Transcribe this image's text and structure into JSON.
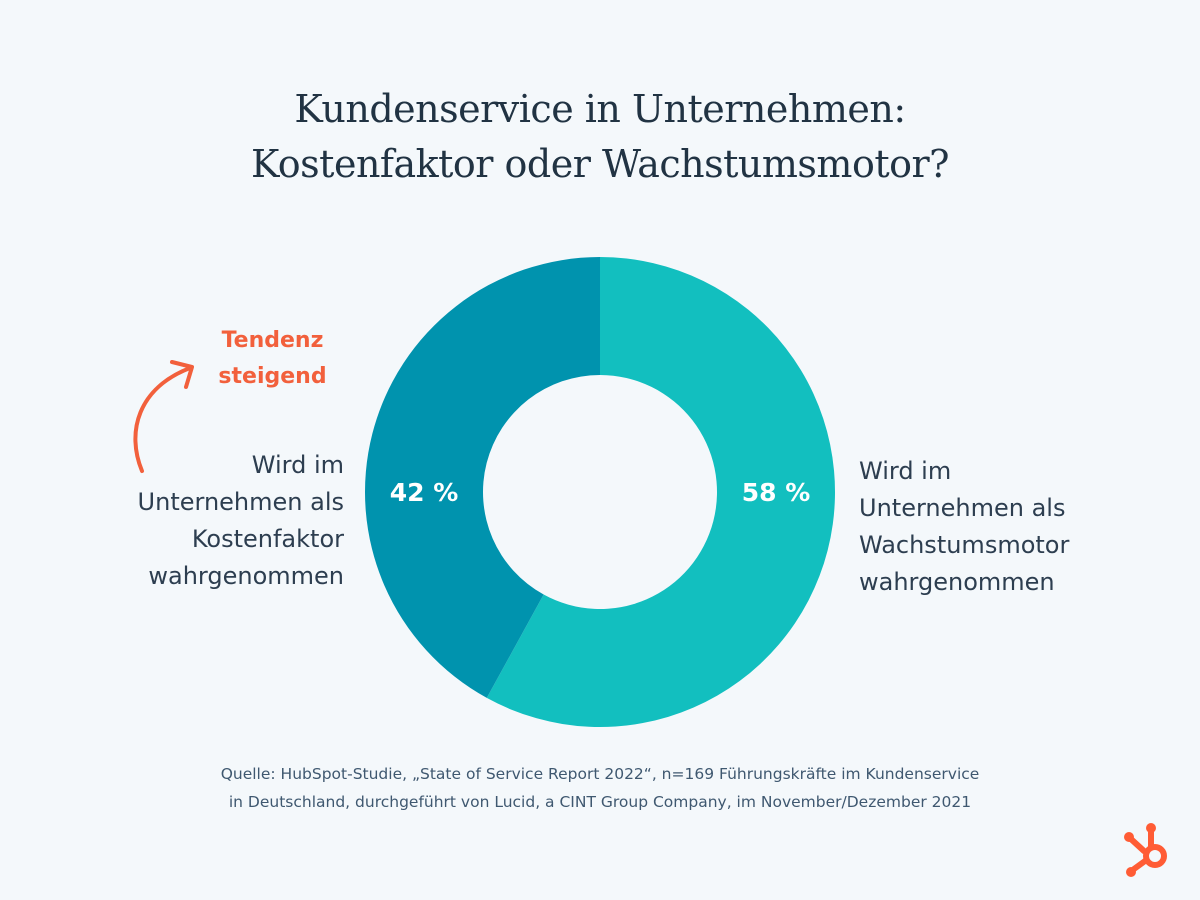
{
  "title": {
    "line1": "Kundenservice in Unternehmen:",
    "line2": "Kostenfaktor oder Wachstumsmotor?"
  },
  "chart_data": {
    "type": "pie",
    "variant": "donut",
    "slices": [
      {
        "value": 58,
        "display": "58 %",
        "color": "#12bfbf",
        "label_lines": [
          "Wird im",
          "Unternehmen als",
          "Wachstumsmotor",
          "wahrgenommen"
        ]
      },
      {
        "value": 42,
        "display": "42 %",
        "color": "#0093ae",
        "label_lines": [
          "Wird im",
          "Unternehmen als",
          "Kostenfaktor",
          "wahrgenommen"
        ]
      }
    ],
    "annotation": {
      "lines": [
        "Tendenz",
        "steigend"
      ],
      "color": "#f2603c",
      "target_slice": 1
    }
  },
  "source": {
    "line1": "Quelle: HubSpot-Studie, „State of Service Report 2022“, n=169 Führungskräfte im Kundenservice",
    "line2": "in Deutschland, durchgeführt von Lucid, a CINT Group Company, im November/Dezember 2021"
  },
  "logo": {
    "icon": "hubspot-sprocket-icon",
    "color": "#ff5c35"
  }
}
